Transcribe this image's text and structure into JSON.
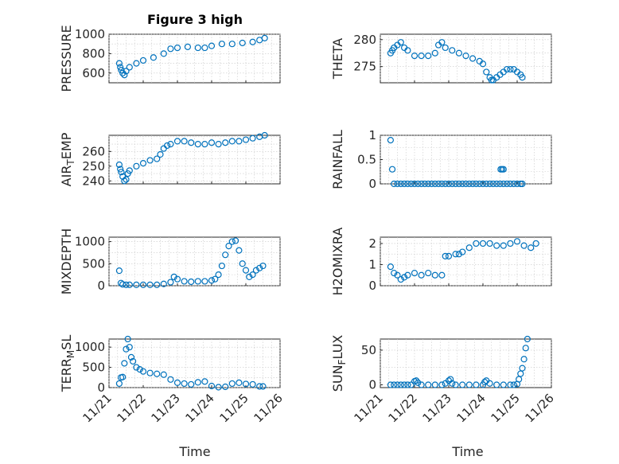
{
  "chart_data": {
    "title": "Figure 3 high",
    "type": "scatter",
    "marker": "circle",
    "color": "#0072bd",
    "x_ticks": [
      "11/21",
      "11/22",
      "11/23",
      "11/24",
      "11/25",
      "11/26"
    ],
    "x_range": [
      21,
      26
    ],
    "xlabel": "Time",
    "panels": [
      {
        "ylabel": "PRESSURE",
        "ylabel_sub": "",
        "ylabel_tail": "",
        "ylim": [
          500,
          1000
        ],
        "yticks": [
          600,
          800,
          1000
        ],
        "x": [
          21.3,
          21.33,
          21.36,
          21.4,
          21.45,
          21.5,
          21.6,
          21.8,
          22.0,
          22.3,
          22.6,
          22.8,
          23.0,
          23.3,
          23.6,
          23.8,
          24.0,
          24.3,
          24.6,
          24.9,
          25.2,
          25.4,
          25.55
        ],
        "y": [
          700,
          660,
          630,
          600,
          580,
          620,
          660,
          700,
          730,
          760,
          800,
          850,
          860,
          870,
          860,
          860,
          880,
          900,
          900,
          910,
          920,
          940,
          960
        ]
      },
      {
        "ylabel": "THETA",
        "ylabel_sub": "",
        "ylabel_tail": "",
        "ylim": [
          272,
          281
        ],
        "yticks": [
          275,
          280
        ],
        "x": [
          21.3,
          21.35,
          21.4,
          21.5,
          21.6,
          21.7,
          21.8,
          22.0,
          22.2,
          22.4,
          22.6,
          22.7,
          22.8,
          22.9,
          23.1,
          23.3,
          23.5,
          23.7,
          23.9,
          24.0,
          24.1,
          24.2,
          24.25,
          24.3,
          24.4,
          24.5,
          24.6,
          24.7,
          24.8,
          24.9,
          25.0,
          25.1,
          25.15
        ],
        "y": [
          277.5,
          278,
          278.5,
          279,
          279.5,
          278.5,
          278,
          277,
          277,
          277,
          277.5,
          279,
          279.5,
          278.5,
          278,
          277.5,
          277,
          276.5,
          276,
          275.5,
          274,
          273,
          272.5,
          272.5,
          273,
          273.5,
          274,
          274.5,
          274.5,
          274.5,
          274,
          273.5,
          273
        ]
      },
      {
        "ylabel": "AIR",
        "ylabel_sub": "T",
        "ylabel_tail": "EMP",
        "ylim": [
          238,
          271
        ],
        "yticks": [
          240,
          250,
          260
        ],
        "x": [
          21.3,
          21.33,
          21.36,
          21.4,
          21.45,
          21.5,
          21.55,
          21.6,
          21.8,
          22.0,
          22.2,
          22.4,
          22.5,
          22.6,
          22.7,
          22.8,
          23.0,
          23.2,
          23.4,
          23.6,
          23.8,
          24.0,
          24.2,
          24.4,
          24.6,
          24.8,
          25.0,
          25.2,
          25.4,
          25.55
        ],
        "y": [
          251,
          248,
          246,
          243,
          240,
          241,
          245,
          247,
          250,
          252,
          254,
          255,
          258,
          262,
          264,
          265,
          267,
          267,
          266,
          265,
          265,
          266,
          265,
          266,
          267,
          267,
          268,
          269,
          270,
          271
        ]
      },
      {
        "ylabel": "RAINFALL",
        "ylabel_sub": "",
        "ylabel_tail": "",
        "ylim": [
          0,
          1
        ],
        "yticks": [
          0,
          0.5,
          1
        ],
        "x": [
          21.3,
          21.35,
          21.4,
          21.5,
          21.6,
          21.7,
          21.8,
          21.9,
          22.0,
          22.1,
          22.2,
          22.3,
          22.4,
          22.5,
          22.6,
          22.7,
          22.8,
          22.9,
          23.0,
          23.1,
          23.2,
          23.3,
          23.4,
          23.5,
          23.6,
          23.7,
          23.8,
          23.9,
          24.0,
          24.1,
          24.2,
          24.3,
          24.4,
          24.5,
          24.6,
          24.7,
          24.8,
          24.9,
          25.0,
          25.1,
          25.15,
          24.52,
          24.56,
          24.6
        ],
        "y": [
          0.9,
          0.3,
          0,
          0,
          0,
          0,
          0,
          0,
          0,
          0,
          0,
          0,
          0,
          0,
          0,
          0,
          0,
          0,
          0,
          0,
          0,
          0,
          0,
          0,
          0,
          0,
          0,
          0,
          0,
          0,
          0,
          0,
          0,
          0,
          0,
          0,
          0,
          0,
          0,
          0,
          0,
          0.3,
          0.3,
          0.3
        ]
      },
      {
        "ylabel": "MIXDEPTH",
        "ylabel_sub": "",
        "ylabel_tail": "",
        "ylim": [
          0,
          1100
        ],
        "yticks": [
          0,
          500,
          1000
        ],
        "x": [
          21.3,
          21.35,
          21.4,
          21.5,
          21.6,
          21.8,
          22.0,
          22.2,
          22.4,
          22.6,
          22.8,
          22.9,
          23.0,
          23.2,
          23.4,
          23.6,
          23.8,
          24.0,
          24.1,
          24.2,
          24.3,
          24.4,
          24.5,
          24.6,
          24.7,
          24.8,
          24.9,
          25.0,
          25.1,
          25.2,
          25.3,
          25.4,
          25.5
        ],
        "y": [
          340,
          60,
          30,
          20,
          20,
          20,
          20,
          20,
          20,
          40,
          80,
          200,
          150,
          100,
          90,
          100,
          100,
          120,
          150,
          250,
          450,
          700,
          900,
          1000,
          1020,
          800,
          500,
          350,
          200,
          250,
          350,
          400,
          450
        ]
      },
      {
        "ylabel": "H2OMIXRA",
        "ylabel_sub": "",
        "ylabel_tail": "",
        "ylim": [
          0,
          2.3
        ],
        "yticks": [
          0,
          1,
          2
        ],
        "x": [
          21.3,
          21.4,
          21.5,
          21.6,
          21.7,
          21.8,
          22.0,
          22.2,
          22.4,
          22.6,
          22.8,
          22.9,
          23.0,
          23.2,
          23.3,
          23.4,
          23.6,
          23.8,
          24.0,
          24.2,
          24.4,
          24.6,
          24.8,
          25.0,
          25.2,
          25.4,
          25.55
        ],
        "y": [
          0.9,
          0.6,
          0.5,
          0.3,
          0.4,
          0.5,
          0.6,
          0.5,
          0.6,
          0.5,
          0.5,
          1.4,
          1.4,
          1.5,
          1.5,
          1.6,
          1.8,
          2.0,
          2.0,
          2.0,
          1.9,
          1.9,
          2.0,
          2.1,
          1.9,
          1.8,
          2.0
        ]
      },
      {
        "ylabel": "TERR",
        "ylabel_sub": "M",
        "ylabel_tail": "SL",
        "ylim": [
          0,
          1200
        ],
        "yticks": [
          0,
          500,
          1000
        ],
        "x": [
          21.3,
          21.35,
          21.4,
          21.45,
          21.5,
          21.55,
          21.6,
          21.65,
          21.7,
          21.8,
          21.9,
          22.0,
          22.2,
          22.4,
          22.6,
          22.8,
          23.0,
          23.2,
          23.4,
          23.6,
          23.8,
          24.0,
          24.2,
          24.4,
          24.6,
          24.8,
          25.0,
          25.2,
          25.4,
          25.5
        ],
        "y": [
          100,
          250,
          260,
          600,
          950,
          1200,
          1000,
          750,
          650,
          500,
          450,
          400,
          360,
          340,
          320,
          200,
          120,
          100,
          80,
          130,
          150,
          40,
          10,
          20,
          100,
          120,
          90,
          80,
          30,
          30
        ]
      },
      {
        "ylabel": "SUN",
        "ylabel_sub": "F",
        "ylabel_tail": "LUX",
        "ylim": [
          -4,
          66
        ],
        "yticks": [
          0,
          50
        ],
        "x": [
          21.3,
          21.4,
          21.5,
          21.6,
          21.7,
          21.8,
          21.9,
          22.0,
          22.05,
          22.1,
          22.2,
          22.4,
          22.6,
          22.8,
          22.9,
          23.0,
          23.05,
          23.1,
          23.2,
          23.4,
          23.6,
          23.8,
          24.0,
          24.05,
          24.1,
          24.2,
          24.4,
          24.6,
          24.8,
          24.9,
          25.0,
          25.05,
          25.1,
          25.15,
          25.2,
          25.25,
          25.3
        ],
        "y": [
          0,
          0,
          0,
          0,
          0,
          0,
          0,
          5,
          6,
          3,
          0,
          0,
          0,
          0,
          2,
          6,
          8,
          2,
          0,
          0,
          0,
          0,
          0,
          4,
          6,
          2,
          0,
          0,
          0,
          0,
          1,
          8,
          16,
          24,
          37,
          53,
          66
        ]
      }
    ]
  }
}
